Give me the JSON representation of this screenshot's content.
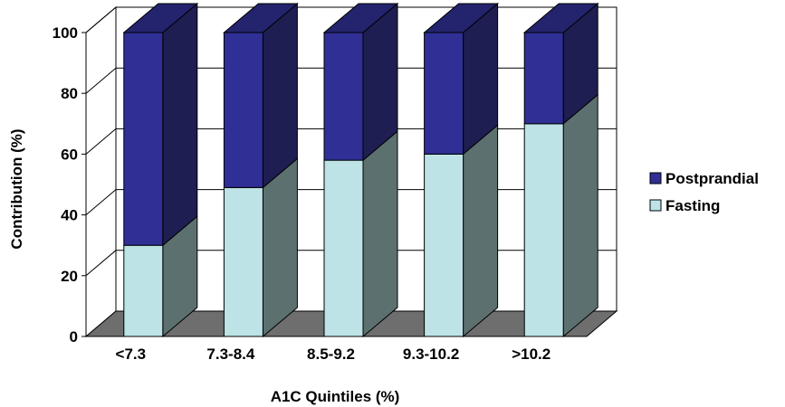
{
  "chart_data": {
    "type": "bar",
    "stacked": true,
    "three_d": true,
    "title": "",
    "xlabel": "A1C Quintiles (%)",
    "ylabel": "Contribution (%)",
    "ylim": [
      0,
      100
    ],
    "yticks": [
      "0",
      "20",
      "40",
      "60",
      "80",
      "100"
    ],
    "grid": true,
    "legend_position": "right",
    "categories": [
      "<7.3",
      "7.3-8.4",
      "8.5-9.2",
      "9.3-10.2",
      ">10.2"
    ],
    "series": [
      {
        "name": "Fasting",
        "values": [
          30,
          49,
          58,
          60,
          70
        ],
        "color": "#bde3e6"
      },
      {
        "name": "Postprandial",
        "values": [
          70,
          51,
          42,
          40,
          30
        ],
        "color": "#2f2f96"
      }
    ],
    "legend_order": [
      "Postprandial",
      "Fasting"
    ]
  }
}
